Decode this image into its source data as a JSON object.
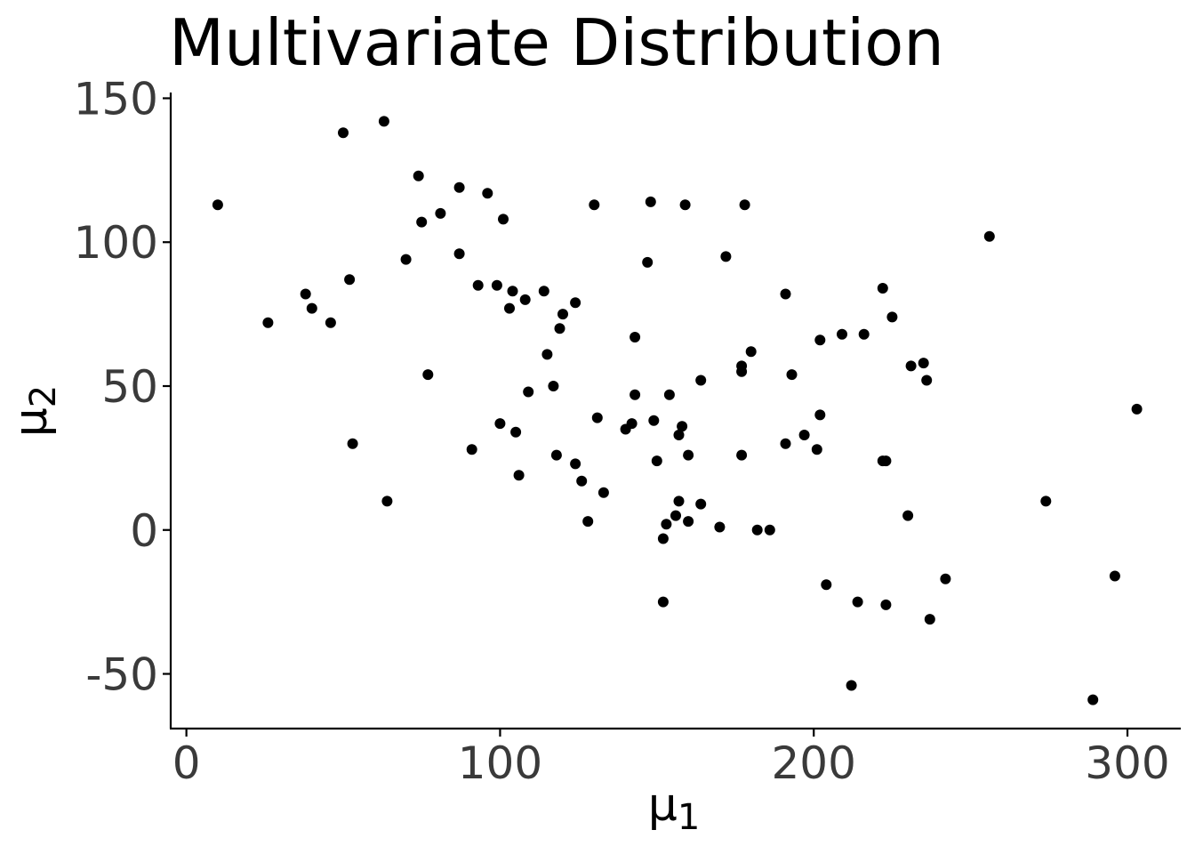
{
  "chart_data": {
    "type": "scatter",
    "title": "Multivariate Distribution",
    "xlabel": {
      "main": "μ",
      "sub": "1"
    },
    "ylabel": {
      "main": "μ",
      "sub": "2"
    },
    "xlim": [
      -5,
      317
    ],
    "ylim": [
      -69,
      152
    ],
    "xticks": [
      0,
      100,
      200,
      300
    ],
    "xtick_labels": [
      "0",
      "100",
      "200",
      "300"
    ],
    "yticks": [
      -50,
      0,
      50,
      100,
      150
    ],
    "ytick_labels": [
      "-50",
      "0",
      "50",
      "100",
      "150"
    ],
    "grid": false,
    "point_color": "#000000",
    "points": [
      [
        10,
        113
      ],
      [
        26,
        72
      ],
      [
        38,
        82
      ],
      [
        40,
        77
      ],
      [
        46,
        72
      ],
      [
        50,
        138
      ],
      [
        52,
        87
      ],
      [
        53,
        30
      ],
      [
        63,
        142
      ],
      [
        64,
        10
      ],
      [
        70,
        94
      ],
      [
        74,
        123
      ],
      [
        75,
        107
      ],
      [
        77,
        54
      ],
      [
        81,
        110
      ],
      [
        87,
        119
      ],
      [
        87,
        96
      ],
      [
        91,
        28
      ],
      [
        93,
        85
      ],
      [
        96,
        117
      ],
      [
        99,
        85
      ],
      [
        100,
        37
      ],
      [
        101,
        108
      ],
      [
        103,
        77
      ],
      [
        104,
        83
      ],
      [
        105,
        34
      ],
      [
        106,
        19
      ],
      [
        108,
        80
      ],
      [
        109,
        48
      ],
      [
        114,
        83
      ],
      [
        115,
        61
      ],
      [
        117,
        50
      ],
      [
        118,
        26
      ],
      [
        119,
        70
      ],
      [
        120,
        75
      ],
      [
        124,
        23
      ],
      [
        124,
        79
      ],
      [
        126,
        17
      ],
      [
        128,
        3
      ],
      [
        130,
        113
      ],
      [
        131,
        39
      ],
      [
        133,
        13
      ],
      [
        140,
        35
      ],
      [
        142,
        37
      ],
      [
        143,
        47
      ],
      [
        143,
        67
      ],
      [
        147,
        93
      ],
      [
        148,
        114
      ],
      [
        149,
        38
      ],
      [
        150,
        24
      ],
      [
        152,
        -3
      ],
      [
        152,
        -25
      ],
      [
        153,
        2
      ],
      [
        154,
        47
      ],
      [
        156,
        5
      ],
      [
        157,
        33
      ],
      [
        157,
        10
      ],
      [
        158,
        36
      ],
      [
        159,
        113
      ],
      [
        160,
        26
      ],
      [
        160,
        3
      ],
      [
        164,
        52
      ],
      [
        164,
        9
      ],
      [
        170,
        1
      ],
      [
        172,
        95
      ],
      [
        177,
        57
      ],
      [
        177,
        55
      ],
      [
        177,
        26
      ],
      [
        178,
        113
      ],
      [
        180,
        62
      ],
      [
        182,
        0
      ],
      [
        186,
        0
      ],
      [
        191,
        82
      ],
      [
        191,
        30
      ],
      [
        193,
        54
      ],
      [
        197,
        33
      ],
      [
        201,
        28
      ],
      [
        202,
        40
      ],
      [
        202,
        66
      ],
      [
        204,
        -19
      ],
      [
        209,
        68
      ],
      [
        212,
        -54
      ],
      [
        214,
        -25
      ],
      [
        216,
        68
      ],
      [
        222,
        84
      ],
      [
        222,
        24
      ],
      [
        223,
        24
      ],
      [
        223,
        -26
      ],
      [
        225,
        74
      ],
      [
        230,
        5
      ],
      [
        231,
        57
      ],
      [
        235,
        58
      ],
      [
        236,
        52
      ],
      [
        237,
        -31
      ],
      [
        242,
        -17
      ],
      [
        256,
        102
      ],
      [
        274,
        10
      ],
      [
        289,
        -59
      ],
      [
        296,
        -16
      ],
      [
        303,
        42
      ]
    ]
  }
}
